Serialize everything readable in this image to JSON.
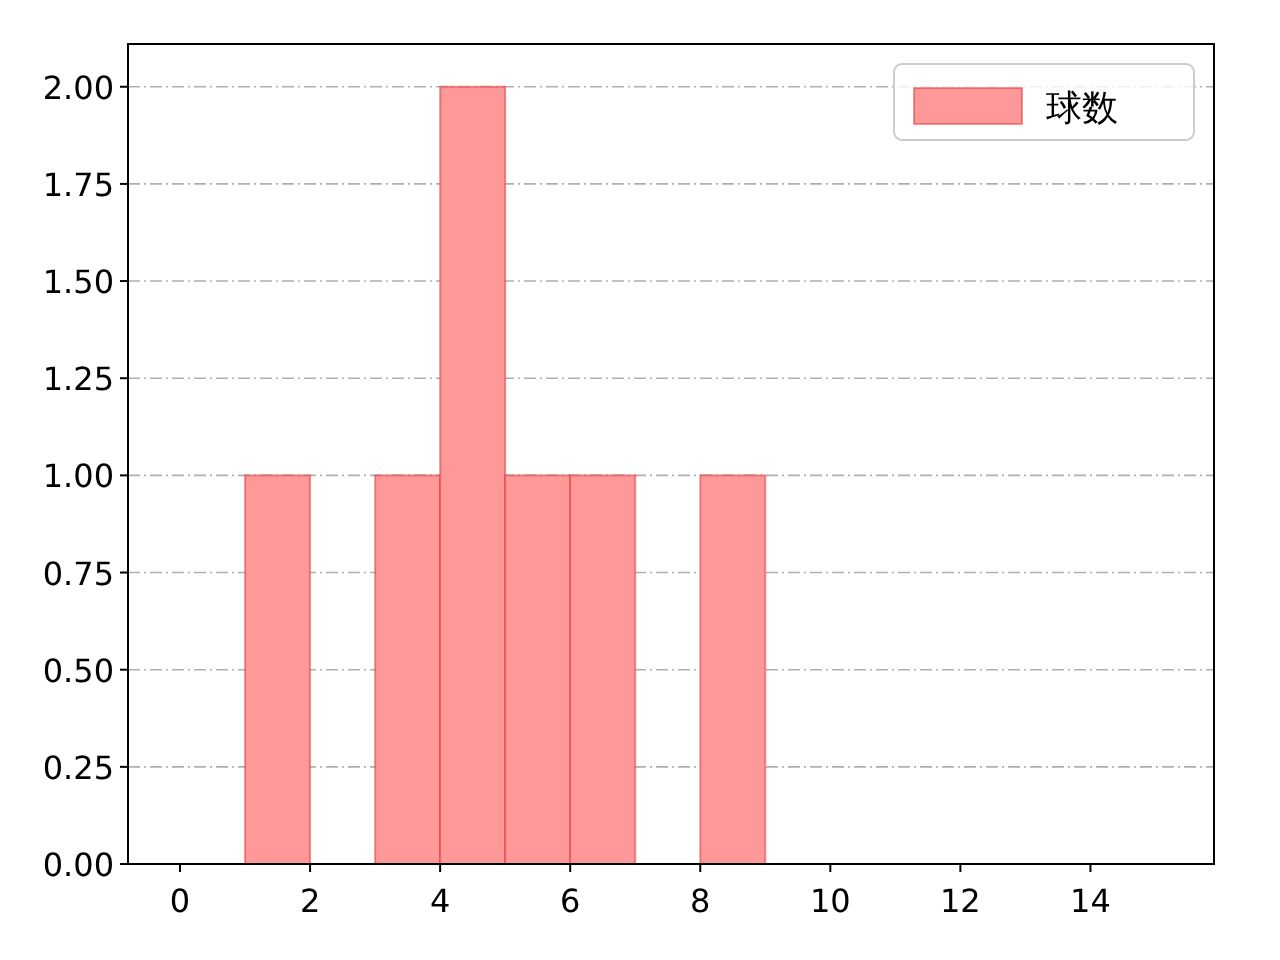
{
  "chart_data": {
    "type": "histogram",
    "bins": [
      1,
      2,
      3,
      4,
      5,
      6,
      7,
      8,
      9
    ],
    "series": [
      {
        "name": "球数",
        "color": "#ff9999",
        "values": [
          1,
          0,
          1,
          2,
          1,
          1,
          0,
          1
        ]
      }
    ],
    "xlim": [
      -0.8,
      15.9
    ],
    "ylim": [
      0,
      2.11
    ],
    "xticks": [
      0,
      2,
      4,
      6,
      8,
      10,
      12,
      14
    ],
    "yticks": [
      {
        "value": 0,
        "label": "0.00"
      },
      {
        "value": 0.25,
        "label": "0.25"
      },
      {
        "value": 0.5,
        "label": "0.50"
      },
      {
        "value": 0.75,
        "label": "0.75"
      },
      {
        "value": 1,
        "label": "1.00"
      },
      {
        "value": 1.25,
        "label": "1.25"
      },
      {
        "value": 1.5,
        "label": "1.50"
      },
      {
        "value": 1.75,
        "label": "1.75"
      },
      {
        "value": 2,
        "label": "2.00"
      }
    ],
    "grid": "y",
    "legend": "top right"
  }
}
